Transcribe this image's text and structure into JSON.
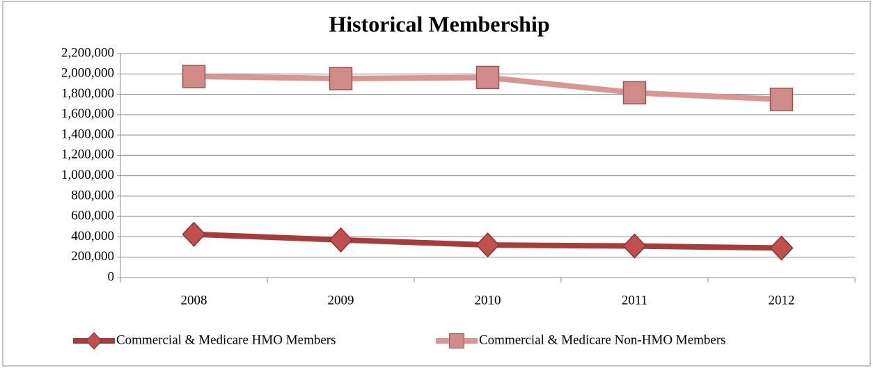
{
  "chart_data": {
    "type": "line",
    "title": "Historical Membership",
    "categories": [
      "2008",
      "2009",
      "2010",
      "2011",
      "2012"
    ],
    "series": [
      {
        "name": "Commercial & Medicare HMO Members",
        "color": "#a83c3a",
        "marker": "diamond",
        "marker_color": "#c0504d",
        "values": [
          425000,
          370000,
          320000,
          310000,
          290000
        ]
      },
      {
        "name": "Commercial & Medicare Non-HMO Members",
        "color": "#d99694",
        "marker": "square",
        "marker_color": "#d08a88",
        "values": [
          1975000,
          1955000,
          1965000,
          1815000,
          1750000
        ]
      }
    ],
    "ylim": [
      0,
      2200000
    ],
    "yticks": [
      0,
      {
        "value": 200000,
        "label": "200,000"
      },
      {
        "value": 400000,
        "label": "400,000"
      },
      {
        "value": 600000,
        "label": "600,000"
      },
      {
        "value": 800000,
        "label": "800,000"
      },
      {
        "value": 1000000,
        "label": "1,000,000"
      },
      {
        "value": 1200000,
        "label": "1,200,000"
      },
      {
        "value": 1400000,
        "label": "1,400,000"
      },
      {
        "value": 1600000,
        "label": "1,600,000"
      },
      {
        "value": 1800000,
        "label": "1,800,000"
      },
      {
        "value": 2000000,
        "label": "2,000,000"
      },
      {
        "value": 2200000,
        "label": "2,200,000"
      }
    ],
    "grid": true,
    "legend": "bottom"
  }
}
